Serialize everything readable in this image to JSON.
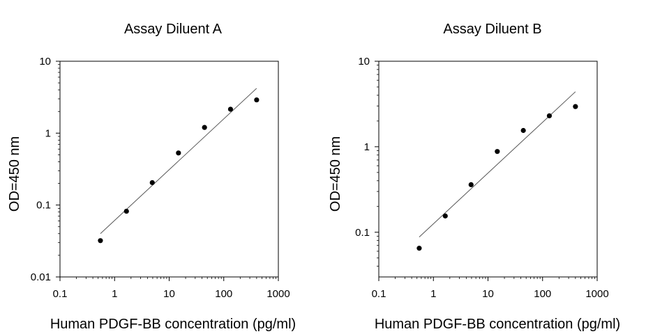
{
  "chart_data": [
    {
      "type": "scatter",
      "title": "Assay Diluent A",
      "xlabel": "Human PDGF-BB concentration (pg/ml)",
      "ylabel": "OD=450 nm",
      "x_scale": "log",
      "y_scale": "log",
      "xlim": [
        0.1,
        1000
      ],
      "ylim": [
        0.01,
        10
      ],
      "x_ticks": [
        "0.1",
        "1",
        "10",
        "100",
        "1000"
      ],
      "y_ticks": [
        "0.01",
        "0.1",
        "1",
        "10"
      ],
      "points": {
        "x": [
          0.55,
          1.65,
          4.9,
          14.8,
          44.4,
          133,
          400
        ],
        "y": [
          0.032,
          0.082,
          0.205,
          0.53,
          1.2,
          2.15,
          2.9
        ]
      },
      "fit_line": {
        "x": [
          0.55,
          400
        ],
        "y": [
          0.04,
          4.2
        ]
      }
    },
    {
      "type": "scatter",
      "title": "Assay Diluent B",
      "xlabel": "Human PDGF-BB concentration (pg/ml)",
      "ylabel": "OD=450 nm",
      "x_scale": "log",
      "y_scale": "log",
      "xlim": [
        0.1,
        1000
      ],
      "ylim": [
        0.03,
        10
      ],
      "x_ticks": [
        "0.1",
        "1",
        "10",
        "100",
        "1000"
      ],
      "y_ticks": [
        "0.1",
        "1",
        "10"
      ],
      "points": {
        "x": [
          0.55,
          1.65,
          4.9,
          14.8,
          44.4,
          133,
          400
        ],
        "y": [
          0.065,
          0.155,
          0.36,
          0.88,
          1.55,
          2.3,
          2.95
        ]
      },
      "fit_line": {
        "x": [
          0.55,
          400
        ],
        "y": [
          0.088,
          4.4
        ]
      }
    }
  ]
}
